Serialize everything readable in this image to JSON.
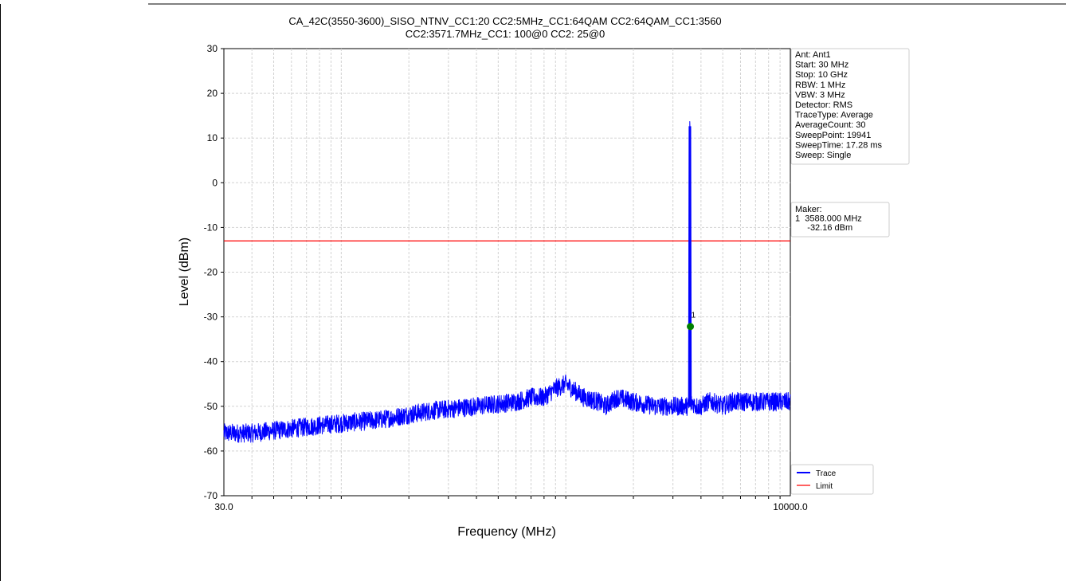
{
  "chart_data": {
    "type": "line",
    "title": "CA_42C(3550-3600)_SISO_NTNV_CC1:20 CC2:5MHz_CC1:64QAM CC2:64QAM_CC1:3560",
    "subtitle": "CC2:3571.7MHz_CC1: 100@0 CC2: 25@0",
    "xlabel": "Frequency (MHz)",
    "ylabel": "Level (dBm)",
    "x_scale": "log",
    "xlim": [
      30.0,
      10000.0
    ],
    "ylim": [
      -70,
      30
    ],
    "x_tick_labels": [
      "30.0",
      "10000.0"
    ],
    "y_ticks": [
      30,
      20,
      10,
      0,
      -10,
      -20,
      -30,
      -40,
      -50,
      -60,
      -70
    ],
    "grid": true,
    "legend_position": "bottom-right",
    "series": [
      {
        "name": "Trace",
        "color": "#0000ff",
        "x": [
          30,
          40,
          60,
          90,
          150,
          250,
          400,
          600,
          700,
          800,
          900,
          1000,
          1200,
          1400,
          1500,
          1700,
          2000,
          2500,
          3000,
          3400,
          3560,
          3580,
          3590,
          3650,
          3800,
          4000,
          4300,
          4500,
          5000,
          5500,
          6000,
          6500,
          7000,
          7500,
          8000,
          9000,
          10000
        ],
        "y": [
          -56,
          -56,
          -55,
          -54,
          -53,
          -51,
          -50,
          -49,
          -48,
          -48,
          -46,
          -45,
          -48,
          -49,
          -50,
          -48,
          -49,
          -50,
          -50,
          -50,
          12.5,
          12.5,
          -50,
          -49,
          -50,
          -50,
          -49,
          -49,
          -50,
          -49,
          -49,
          -49,
          -49,
          -49,
          -49,
          -49,
          -49
        ]
      },
      {
        "name": "Limit",
        "color": "#ff0000",
        "x": [
          30,
          10000
        ],
        "y": [
          -13,
          -13
        ]
      }
    ],
    "marker": {
      "label": "1",
      "x": 3588.0,
      "y": -32.16,
      "color": "#008000"
    }
  },
  "settings_box": {
    "lines": [
      "Ant: Ant1",
      "Start: 30 MHz",
      "Stop: 10 GHz",
      "RBW: 1 MHz",
      "VBW: 3 MHz",
      "Detector: RMS",
      "TraceType: Average",
      "AverageCount: 30",
      "SweepPoint: 19941",
      "SweepTime: 17.28 ms",
      "Sweep: Single"
    ]
  },
  "marker_box": {
    "lines": [
      "Maker:",
      "1  3588.000 MHz",
      "     -32.16 dBm"
    ]
  }
}
